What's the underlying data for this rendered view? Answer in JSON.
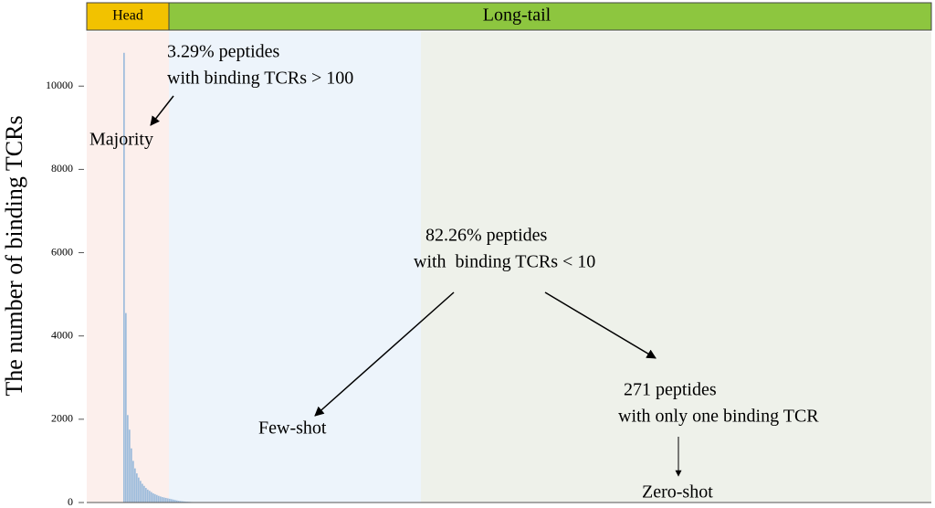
{
  "chart_data": {
    "type": "bar",
    "head_label": "Head",
    "tail_label": "Long-tail",
    "ylabel": "The number of binding TCRs",
    "annotations": [
      "3.29% peptides",
      "with binding TCRs > 100",
      "Majority",
      "82.26% peptides",
      "with  binding TCRs < 10",
      "Few-shot",
      "271 peptides",
      "with only one binding TCR",
      "Zero-shot"
    ],
    "categories": [
      null,
      null,
      null,
      null,
      null,
      null,
      null,
      null,
      null,
      null,
      null,
      null,
      null,
      null,
      null,
      null,
      null,
      null,
      null,
      null,
      null,
      null,
      null,
      null,
      null,
      null,
      null,
      null,
      null,
      null,
      null,
      null,
      null,
      null,
      null,
      null,
      null,
      null,
      null,
      null,
      null,
      null,
      null,
      null,
      null,
      null
    ],
    "values": [
      10800,
      4550,
      2100,
      1750,
      1300,
      1000,
      820,
      700,
      600,
      520,
      450,
      400,
      350,
      310,
      280,
      250,
      220,
      200,
      180,
      160,
      145,
      130,
      120,
      110,
      100,
      90,
      80,
      70,
      60,
      50,
      40,
      35,
      30,
      25,
      20,
      18,
      15,
      12,
      10,
      8,
      6,
      5,
      4,
      3,
      2,
      1
    ],
    "color": "#9dbcdc",
    "ylim": [
      0,
      11300
    ],
    "yticks": [
      0,
      2000,
      4000,
      6000,
      8000,
      10000
    ]
  }
}
